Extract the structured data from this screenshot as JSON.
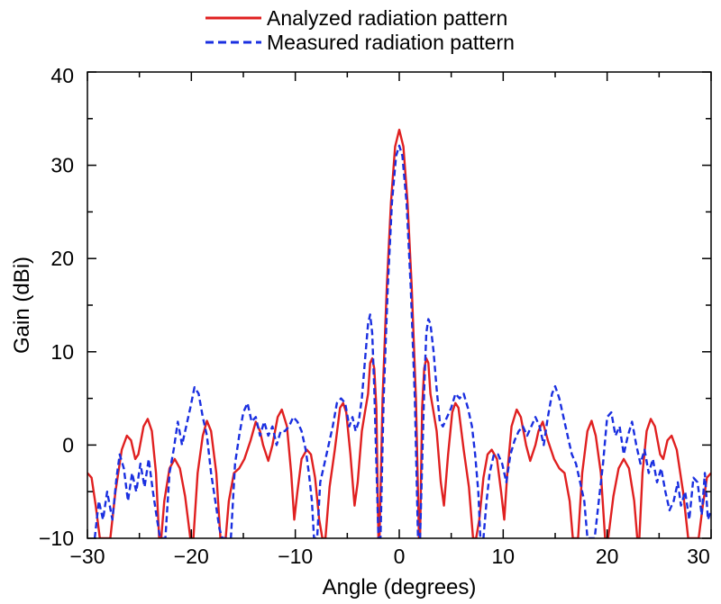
{
  "chart_data": {
    "type": "line",
    "title": "",
    "xlabel": "Angle (degrees)",
    "ylabel": "Gain (dBi)",
    "xlim": [
      -30,
      30
    ],
    "ylim": [
      -10,
      40
    ],
    "xticks": [
      -30,
      -20,
      -10,
      0,
      10,
      20,
      30
    ],
    "yticks": [
      -10,
      0,
      10,
      20,
      30,
      40
    ],
    "xtick_labels": [
      "−30",
      "−20",
      "−10",
      "0",
      "10",
      "20",
      "30"
    ],
    "ytick_labels": [
      "−10",
      "0",
      "10",
      "20",
      "30",
      "40"
    ],
    "grid": false,
    "legend_position": "top-center",
    "series": [
      {
        "name": "Analyzed radiation pattern",
        "color": "#e02020",
        "style": "solid",
        "points": [
          [
            -30,
            -3
          ],
          [
            -29.6,
            -3.5
          ],
          [
            -29.2,
            -6.5
          ],
          [
            -28.8,
            -10
          ],
          [
            -27.8,
            -10
          ],
          [
            -27.3,
            -5
          ],
          [
            -26.7,
            -0.5
          ],
          [
            -26.2,
            1
          ],
          [
            -25.8,
            0.5
          ],
          [
            -25.4,
            -1.5
          ],
          [
            -25.1,
            -1
          ],
          [
            -24.6,
            2
          ],
          [
            -24.2,
            2.8
          ],
          [
            -23.8,
            1.5
          ],
          [
            -23.4,
            -3
          ],
          [
            -23.1,
            -10
          ],
          [
            -22.9,
            -10
          ],
          [
            -22.6,
            -6
          ],
          [
            -22.1,
            -2.5
          ],
          [
            -21.6,
            -1.5
          ],
          [
            -21.1,
            -2.5
          ],
          [
            -20.6,
            -5.5
          ],
          [
            -20.1,
            -10
          ],
          [
            -19.8,
            -10
          ],
          [
            -19.4,
            -3
          ],
          [
            -18.9,
            1
          ],
          [
            -18.5,
            2.6
          ],
          [
            -18.1,
            1.5
          ],
          [
            -17.6,
            -3
          ],
          [
            -17.2,
            -10
          ],
          [
            -16.7,
            -10
          ],
          [
            -16.4,
            -6
          ],
          [
            -15.9,
            -3
          ],
          [
            -15.4,
            -2.5
          ],
          [
            -14.9,
            -1.5
          ],
          [
            -14.3,
            0.5
          ],
          [
            -13.8,
            2.5
          ],
          [
            -13.4,
            1.5
          ],
          [
            -13.1,
            0
          ],
          [
            -12.6,
            -1.7
          ],
          [
            -12.2,
            0
          ],
          [
            -11.7,
            3
          ],
          [
            -11.3,
            3.8
          ],
          [
            -10.8,
            2
          ],
          [
            -10.4,
            -3
          ],
          [
            -10.1,
            -8
          ],
          [
            -9.8,
            -5
          ],
          [
            -9.4,
            -1.5
          ],
          [
            -8.9,
            -0.5
          ],
          [
            -8.5,
            -1
          ],
          [
            -8.1,
            -3.5
          ],
          [
            -7.7,
            -8
          ],
          [
            -7.4,
            -10
          ],
          [
            -7.1,
            -10
          ],
          [
            -6.7,
            -4.5
          ],
          [
            -6.2,
            -0.5
          ],
          [
            -5.7,
            4
          ],
          [
            -5.4,
            4.5
          ],
          [
            -5.1,
            3.5
          ],
          [
            -4.7,
            -1
          ],
          [
            -4.3,
            -6.5
          ],
          [
            -4.0,
            -4
          ],
          [
            -3.6,
            1.5
          ],
          [
            -3.3,
            3.5
          ],
          [
            -3.0,
            5.5
          ],
          [
            -2.8,
            8.8
          ],
          [
            -2.6,
            9.3
          ],
          [
            -2.4,
            8.2
          ],
          [
            -2.2,
            4
          ],
          [
            -2.0,
            -10
          ],
          [
            -1.9,
            -10
          ],
          [
            -1.6,
            5
          ],
          [
            -1.2,
            17
          ],
          [
            -0.8,
            26
          ],
          [
            -0.4,
            32
          ],
          [
            0,
            33.8
          ],
          [
            0.4,
            32
          ],
          [
            0.8,
            26
          ],
          [
            1.2,
            17
          ],
          [
            1.6,
            5
          ],
          [
            1.9,
            -10
          ],
          [
            2.0,
            -10
          ],
          [
            2.2,
            4
          ],
          [
            2.4,
            8.2
          ],
          [
            2.6,
            9.3
          ],
          [
            2.8,
            8.8
          ],
          [
            3.0,
            5.5
          ],
          [
            3.3,
            3.5
          ],
          [
            3.6,
            1.5
          ],
          [
            4.0,
            -4
          ],
          [
            4.3,
            -6.5
          ],
          [
            4.7,
            -1
          ],
          [
            5.1,
            3.5
          ],
          [
            5.4,
            4.5
          ],
          [
            5.7,
            4
          ],
          [
            6.2,
            -0.5
          ],
          [
            6.7,
            -4.5
          ],
          [
            7.1,
            -10
          ],
          [
            7.4,
            -10
          ],
          [
            7.7,
            -8
          ],
          [
            8.1,
            -3.5
          ],
          [
            8.5,
            -1
          ],
          [
            8.9,
            -0.5
          ],
          [
            9.4,
            -1.5
          ],
          [
            9.8,
            -5
          ],
          [
            10.1,
            -8
          ],
          [
            10.4,
            -3
          ],
          [
            10.8,
            2
          ],
          [
            11.3,
            3.8
          ],
          [
            11.7,
            3
          ],
          [
            12.2,
            0
          ],
          [
            12.6,
            -1.7
          ],
          [
            13.1,
            0
          ],
          [
            13.4,
            1.5
          ],
          [
            13.8,
            2.5
          ],
          [
            14.3,
            0.5
          ],
          [
            14.9,
            -1.5
          ],
          [
            15.4,
            -2.5
          ],
          [
            15.9,
            -3
          ],
          [
            16.4,
            -6
          ],
          [
            16.7,
            -10
          ],
          [
            17.2,
            -10
          ],
          [
            17.6,
            -3
          ],
          [
            18.1,
            1.5
          ],
          [
            18.5,
            2.6
          ],
          [
            18.9,
            1
          ],
          [
            19.4,
            -3
          ],
          [
            19.8,
            -10
          ],
          [
            20.1,
            -10
          ],
          [
            20.6,
            -5.5
          ],
          [
            21.1,
            -2.5
          ],
          [
            21.6,
            -1.5
          ],
          [
            22.1,
            -2.5
          ],
          [
            22.6,
            -6
          ],
          [
            22.9,
            -10
          ],
          [
            23.1,
            -10
          ],
          [
            23.4,
            -3
          ],
          [
            23.8,
            1.5
          ],
          [
            24.2,
            2.8
          ],
          [
            24.6,
            2
          ],
          [
            25.1,
            -1
          ],
          [
            25.4,
            -1.5
          ],
          [
            25.8,
            0.5
          ],
          [
            26.2,
            1
          ],
          [
            26.7,
            -0.5
          ],
          [
            27.3,
            -5
          ],
          [
            27.8,
            -10
          ],
          [
            28.8,
            -10
          ],
          [
            29.2,
            -6.5
          ],
          [
            29.6,
            -3.5
          ],
          [
            30,
            -3
          ]
        ]
      },
      {
        "name": "Measured radiation pattern",
        "color": "#1a2fe0",
        "style": "dashed",
        "points": [
          [
            -29.3,
            -10
          ],
          [
            -28.9,
            -6
          ],
          [
            -28.5,
            -8
          ],
          [
            -28.1,
            -5
          ],
          [
            -27.6,
            -8
          ],
          [
            -27.2,
            -3.5
          ],
          [
            -26.9,
            -1
          ],
          [
            -26.5,
            -2.5
          ],
          [
            -26.1,
            -6
          ],
          [
            -25.7,
            -3
          ],
          [
            -25.3,
            -5
          ],
          [
            -24.9,
            -2
          ],
          [
            -24.5,
            -4.5
          ],
          [
            -24.1,
            -1.5
          ],
          [
            -23.7,
            -5
          ],
          [
            -23.3,
            -8
          ],
          [
            -23.0,
            -10
          ],
          [
            -22.5,
            -10
          ],
          [
            -22.1,
            -3
          ],
          [
            -21.7,
            -0.5
          ],
          [
            -21.3,
            2.5
          ],
          [
            -20.9,
            0
          ],
          [
            -20.5,
            2
          ],
          [
            -20.1,
            4
          ],
          [
            -19.7,
            6.2
          ],
          [
            -19.3,
            5.5
          ],
          [
            -18.9,
            3
          ],
          [
            -18.5,
            1
          ],
          [
            -18.1,
            -3
          ],
          [
            -17.7,
            -6
          ],
          [
            -17.3,
            -9
          ],
          [
            -17.0,
            -10
          ],
          [
            -16.2,
            -10
          ],
          [
            -15.8,
            -2
          ],
          [
            -15.4,
            1
          ],
          [
            -15.0,
            3.5
          ],
          [
            -14.6,
            4.5
          ],
          [
            -14.2,
            2.5
          ],
          [
            -13.8,
            3
          ],
          [
            -13.4,
            1
          ],
          [
            -13.0,
            2.5
          ],
          [
            -12.6,
            1
          ],
          [
            -12.2,
            2
          ],
          [
            -11.8,
            0
          ],
          [
            -11.4,
            1.5
          ],
          [
            -11.0,
            1.5
          ],
          [
            -10.6,
            2
          ],
          [
            -10.2,
            3
          ],
          [
            -9.8,
            2.5
          ],
          [
            -9.4,
            1.5
          ],
          [
            -9.0,
            -0.5
          ],
          [
            -8.7,
            -3
          ],
          [
            -8.4,
            -6
          ],
          [
            -8.2,
            -10
          ],
          [
            -7.9,
            -10
          ],
          [
            -7.6,
            -4
          ],
          [
            -7.2,
            -2
          ],
          [
            -6.8,
            0
          ],
          [
            -6.4,
            2
          ],
          [
            -6.0,
            4.5
          ],
          [
            -5.6,
            5
          ],
          [
            -5.2,
            4.5
          ],
          [
            -4.8,
            2
          ],
          [
            -4.5,
            3
          ],
          [
            -4.2,
            1.5
          ],
          [
            -3.9,
            2.5
          ],
          [
            -3.6,
            5
          ],
          [
            -3.3,
            9
          ],
          [
            -3.0,
            13
          ],
          [
            -2.8,
            14
          ],
          [
            -2.6,
            12
          ],
          [
            -2.4,
            6
          ],
          [
            -2.2,
            -2
          ],
          [
            -2.0,
            -10
          ],
          [
            -1.8,
            -10
          ],
          [
            -1.5,
            5
          ],
          [
            -1.1,
            17
          ],
          [
            -0.7,
            26
          ],
          [
            -0.3,
            31
          ],
          [
            0,
            32.1
          ],
          [
            0.3,
            31
          ],
          [
            0.7,
            26
          ],
          [
            1.1,
            17
          ],
          [
            1.5,
            5
          ],
          [
            1.8,
            -10
          ],
          [
            2.0,
            -10
          ],
          [
            2.2,
            -2
          ],
          [
            2.4,
            6
          ],
          [
            2.6,
            12
          ],
          [
            2.8,
            13.5
          ],
          [
            3.0,
            13
          ],
          [
            3.3,
            10
          ],
          [
            3.6,
            6
          ],
          [
            3.9,
            2.5
          ],
          [
            4.2,
            2
          ],
          [
            4.6,
            3
          ],
          [
            5.0,
            4
          ],
          [
            5.4,
            5.5
          ],
          [
            5.8,
            5
          ],
          [
            6.2,
            5.5
          ],
          [
            6.6,
            4
          ],
          [
            7.0,
            2
          ],
          [
            7.3,
            -1
          ],
          [
            7.6,
            -5
          ],
          [
            7.8,
            -10
          ],
          [
            8.1,
            -10
          ],
          [
            8.4,
            -6
          ],
          [
            8.7,
            -3
          ],
          [
            9.1,
            -1
          ],
          [
            9.5,
            -1
          ],
          [
            9.9,
            -2
          ],
          [
            10.3,
            -4
          ],
          [
            10.7,
            -1
          ],
          [
            11.1,
            0.5
          ],
          [
            11.5,
            1.5
          ],
          [
            11.9,
            2
          ],
          [
            12.3,
            1
          ],
          [
            12.7,
            2
          ],
          [
            13.1,
            3
          ],
          [
            13.5,
            2
          ],
          [
            13.9,
            0
          ],
          [
            14.3,
            3
          ],
          [
            14.7,
            5.5
          ],
          [
            15.0,
            6.3
          ],
          [
            15.4,
            5
          ],
          [
            15.8,
            3
          ],
          [
            16.2,
            1
          ],
          [
            16.6,
            -1
          ],
          [
            17.0,
            -2
          ],
          [
            17.4,
            -4
          ],
          [
            17.8,
            -6
          ],
          [
            18.1,
            -10
          ],
          [
            18.8,
            -10
          ],
          [
            19.2,
            -6
          ],
          [
            19.6,
            -2
          ],
          [
            20.0,
            3
          ],
          [
            20.4,
            3.5
          ],
          [
            20.8,
            1
          ],
          [
            21.2,
            2
          ],
          [
            21.6,
            -1
          ],
          [
            22.0,
            1
          ],
          [
            22.4,
            2.5
          ],
          [
            22.8,
            0
          ],
          [
            23.2,
            -2
          ],
          [
            23.6,
            -0.5
          ],
          [
            24.0,
            -3
          ],
          [
            24.4,
            -1.5
          ],
          [
            24.8,
            -4
          ],
          [
            25.2,
            -2.5
          ],
          [
            25.6,
            -5
          ],
          [
            26.0,
            -7
          ],
          [
            26.4,
            -6
          ],
          [
            26.8,
            -4
          ],
          [
            27.1,
            -6.5
          ],
          [
            27.5,
            -5
          ],
          [
            27.9,
            -8
          ],
          [
            28.3,
            -3.5
          ],
          [
            28.7,
            -4
          ],
          [
            29.1,
            -7.5
          ],
          [
            29.4,
            -3
          ],
          [
            29.7,
            -8
          ],
          [
            30,
            -7
          ]
        ]
      }
    ]
  }
}
